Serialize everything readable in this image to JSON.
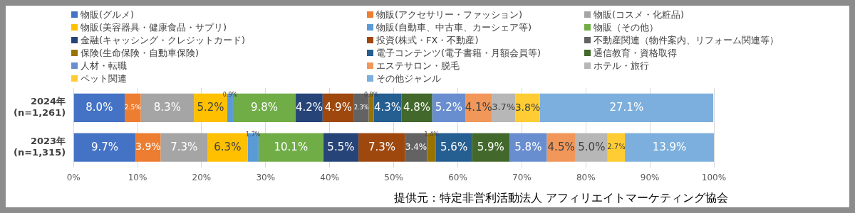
{
  "chart_data": {
    "type": "bar",
    "orientation": "horizontal",
    "stacked": true,
    "legend": "top",
    "grid": "x",
    "categories": [
      "2024年\n(n=1,261)",
      "2023年\n(n=1,315)"
    ],
    "xlim": [
      0,
      100
    ],
    "xticks": [
      {
        "value": 0,
        "label": "0%"
      },
      {
        "value": 10,
        "label": "10%"
      },
      {
        "value": 20,
        "label": "20%"
      },
      {
        "value": 30,
        "label": "30%"
      },
      {
        "value": 40,
        "label": "40%"
      },
      {
        "value": 50,
        "label": "50%"
      },
      {
        "value": 60,
        "label": "60%"
      },
      {
        "value": 70,
        "label": "70%"
      },
      {
        "value": 80,
        "label": "80%"
      },
      {
        "value": 90,
        "label": "90%"
      },
      {
        "value": 100,
        "label": "100%"
      }
    ],
    "annotations": [
      "提供元：特定非営利活動法人 アフィリエイトマーケティング協会"
    ],
    "series": [
      {
        "name": "物販(グルメ)",
        "color": "#4472c4",
        "values": [
          8.0,
          9.7
        ],
        "value_labels": [
          "8.0%",
          "9.7%"
        ]
      },
      {
        "name": "物販(アクセサリー・ファッション)",
        "color": "#ed7d31",
        "values": [
          2.5,
          3.9
        ],
        "value_labels": [
          "2.5%",
          "3.9%"
        ]
      },
      {
        "name": "物販(コスメ・化粧品)",
        "color": "#a5a5a5",
        "values": [
          8.3,
          7.3
        ],
        "value_labels": [
          "8.3%",
          "7.3%"
        ]
      },
      {
        "name": "物販(美容器具・健康食品・サプリ)",
        "color": "#ffc000",
        "values": [
          5.2,
          6.3
        ],
        "value_labels": [
          "5.2%",
          "6.3%"
        ]
      },
      {
        "name": "物販(自動車、中古車、カーシェア等)",
        "color": "#5b9bd5",
        "values": [
          0.9,
          1.7
        ],
        "value_labels": [
          "0.9%",
          "1.7%"
        ]
      },
      {
        "name": "物販（その他）",
        "color": "#70ad47",
        "values": [
          9.8,
          10.1
        ],
        "value_labels": [
          "9.8%",
          "10.1%"
        ]
      },
      {
        "name": "金融(キャッシング・クレジットカード)",
        "color": "#264478",
        "values": [
          4.2,
          5.5
        ],
        "value_labels": [
          "4.2%",
          "5.5%"
        ]
      },
      {
        "name": "投資(株式・FX・不動産)",
        "color": "#9e480e",
        "values": [
          4.9,
          7.3
        ],
        "value_labels": [
          "4.9%",
          "7.3%"
        ]
      },
      {
        "name": "不動産関連（物件案内、リフォーム関連等）",
        "color": "#636363",
        "values": [
          2.3,
          3.4
        ],
        "value_labels": [
          "2.3%",
          "3.4%"
        ]
      },
      {
        "name": "保険(生命保険・自動車保険)",
        "color": "#997300",
        "values": [
          0.8,
          1.4
        ],
        "value_labels": [
          "0.8%",
          "1.4%"
        ]
      },
      {
        "name": "電子コンテンツ(電子書籍・月額会員等)",
        "color": "#255e91",
        "values": [
          4.3,
          5.6
        ],
        "value_labels": [
          "4.3%",
          "5.6%"
        ]
      },
      {
        "name": "通信教育・資格取得",
        "color": "#43682b",
        "values": [
          4.8,
          5.9
        ],
        "value_labels": [
          "4.8%",
          "5.9%"
        ]
      },
      {
        "name": "人材・転職",
        "color": "#698ed0",
        "values": [
          5.2,
          5.8
        ],
        "value_labels": [
          "5.2%",
          "5.8%"
        ]
      },
      {
        "name": "エステサロン・脱毛",
        "color": "#f1975a",
        "values": [
          4.1,
          4.5
        ],
        "value_labels": [
          "4.1%",
          "4.5%"
        ]
      },
      {
        "name": "ホテル・旅行",
        "color": "#b7b7b7",
        "values": [
          3.7,
          5.0
        ],
        "value_labels": [
          "3.7%",
          "5.0%"
        ]
      },
      {
        "name": "ペット関連",
        "color": "#ffcd33",
        "values": [
          3.8,
          2.7
        ],
        "value_labels": [
          "3.8%",
          "2.7%"
        ]
      },
      {
        "name": "その他ジャンル",
        "color": "#7cafdd",
        "values": [
          27.1,
          13.9
        ],
        "value_labels": [
          "27.1%",
          "13.9%"
        ]
      }
    ]
  }
}
